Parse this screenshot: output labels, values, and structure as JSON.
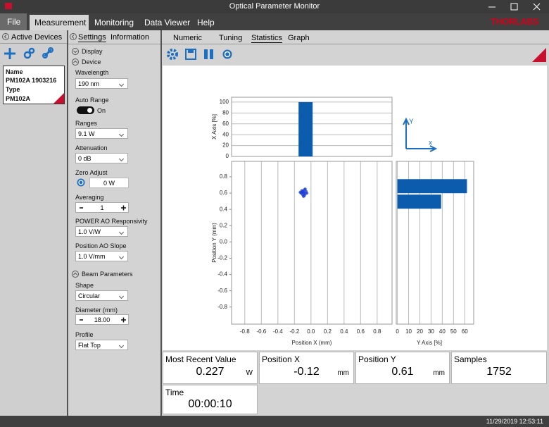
{
  "window": {
    "title": "Optical Parameter Monitor",
    "logo": "THORLABS"
  },
  "menu": [
    "File",
    "Measurement",
    "Monitoring",
    "Data Viewer",
    "Help"
  ],
  "devices_panel": {
    "title": "Active Devices",
    "device": {
      "name_label": "Name",
      "name": "PM102A 1903216",
      "type_label": "Type",
      "type": "PM102A"
    }
  },
  "settings_panel": {
    "tabs": [
      "Settings",
      "Information"
    ],
    "display": "Display",
    "device": "Device",
    "fields": [
      {
        "label": "Wavelength",
        "value": "190 nm"
      },
      {
        "label": "Auto Range",
        "value": "On"
      },
      {
        "label": "Ranges",
        "value": "9.1 W"
      },
      {
        "label": "Attenuation",
        "value": "0 dB"
      },
      {
        "label": "Zero Adjust",
        "value": "0 W"
      },
      {
        "label": "Averaging",
        "value": "1"
      },
      {
        "label": "POWER AO Responsivity",
        "value": "1.0 V/W"
      },
      {
        "label": "Position AO Slope",
        "value": "1.0 V/mm"
      }
    ],
    "beam_section": "Beam Parameters",
    "beam_fields": [
      {
        "label": "Shape",
        "value": "Circular"
      },
      {
        "label": "Diameter (mm)",
        "value": "18.00"
      },
      {
        "label": "Profile",
        "value": "Flat Top"
      }
    ]
  },
  "view_tabs": [
    "Numeric",
    "Tuning",
    "Statistics",
    "Graph"
  ],
  "plots": {
    "x_histogram": {
      "type": "histogram",
      "ylabel": "X Axis [%]",
      "bins": [
        -0.15,
        0.02
      ],
      "values": [
        100
      ],
      "ylim": [
        0,
        109
      ],
      "yticks": [
        0,
        20,
        40,
        60,
        80,
        100
      ],
      "color": "#0b5cad"
    },
    "scatter": {
      "type": "scatter",
      "xlabel": "Position X (mm)",
      "ylabel": "Position Y (mm)",
      "x": [
        -0.09,
        -0.11,
        -0.07,
        -0.1,
        -0.08,
        -0.12,
        -0.06,
        -0.09,
        -0.11,
        -0.07,
        -0.1,
        -0.08,
        -0.09,
        -0.13,
        -0.05
      ],
      "y": [
        0.61,
        0.63,
        0.59,
        0.58,
        0.64,
        0.6,
        0.62,
        0.56,
        0.61,
        0.65,
        0.62,
        0.57,
        0.6,
        0.61,
        0.6
      ],
      "xlim": [
        -0.96,
        0.98
      ],
      "ylim": [
        -1.01,
        0.99
      ],
      "xticks": [
        -0.8,
        -0.6,
        -0.4,
        -0.2,
        {
          "value": 0,
          "label": "0.0"
        },
        0.2,
        0.4,
        0.6,
        0.8
      ],
      "yticks": [
        -0.8,
        -0.6,
        -0.4,
        -0.2,
        {
          "value": 0,
          "label": "0.0"
        },
        0.2,
        0.4,
        0.6,
        0.8
      ],
      "color": "#1f3fd6"
    },
    "y_histogram": {
      "type": "histogram",
      "orientation": "horizontal",
      "xlabel": "Y Axis [%]",
      "bins": [
        0.4,
        0.59,
        0.78
      ],
      "values": [
        39,
        62
      ],
      "xlim": [
        -1,
        68
      ],
      "xticks": [
        0,
        10,
        20,
        30,
        40,
        50,
        60
      ],
      "color": "#0b5cad"
    },
    "axis_icon": {
      "x": "x",
      "y": "Y"
    }
  },
  "readouts": [
    {
      "label": "Most Recent Value",
      "value": "0.227",
      "unit": "W"
    },
    {
      "label": "Position X",
      "value": "-0.12",
      "unit": "mm"
    },
    {
      "label": "Position Y",
      "value": "0.61",
      "unit": "mm"
    },
    {
      "label": "Samples",
      "value": "1752"
    },
    {
      "label": "Time",
      "value": "00:00:10"
    }
  ],
  "status": {
    "timestamp": "11/29/2019 12:53:11"
  }
}
